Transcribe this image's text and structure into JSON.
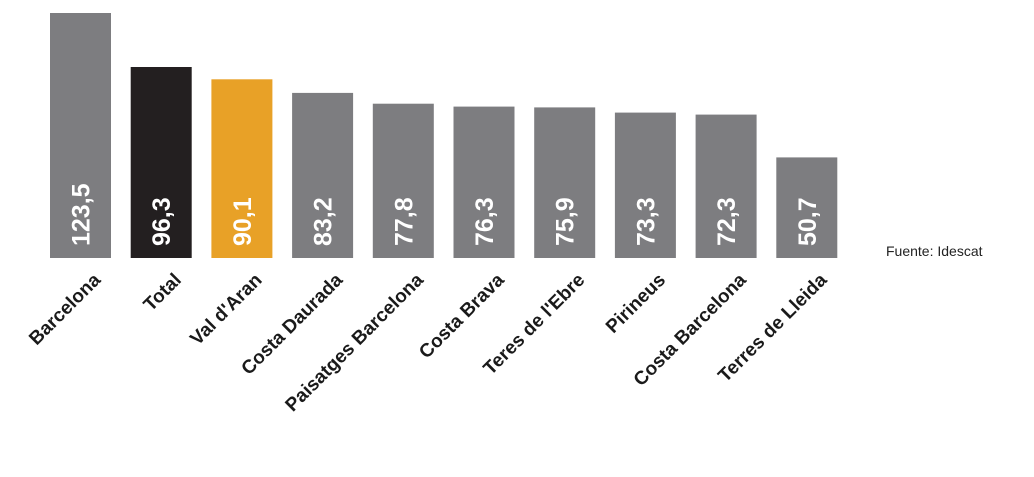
{
  "source_note": "Fuente: Idescat",
  "colors": {
    "default_bar": "#7d7d80",
    "total_bar": "#231f20",
    "highlight_bar": "#e8a127",
    "value_label": "#ffffff",
    "category_label": "#1a1a1a"
  },
  "chart_data": {
    "type": "bar",
    "title": "",
    "xlabel": "",
    "ylabel": "",
    "ylim": [
      0,
      123.5
    ],
    "grid": false,
    "categories": [
      "Barcelona",
      "Total",
      "Val d'Aran",
      "Costa Daurada",
      "Paisatges Barcelona",
      "Costa Brava",
      "Teres de l'Ebre",
      "Pirineus",
      "Costa Barcelona",
      "Terres de Lleida"
    ],
    "values": [
      123.5,
      96.3,
      90.1,
      83.2,
      77.8,
      76.3,
      75.9,
      73.3,
      72.3,
      50.7
    ],
    "value_labels": [
      "123,5",
      "96,3",
      "90,1",
      "83,2",
      "77,8",
      "76,3",
      "75,9",
      "73,3",
      "72,3",
      "50,7"
    ],
    "bar_colors": [
      "#7d7d80",
      "#231f20",
      "#e8a127",
      "#7d7d80",
      "#7d7d80",
      "#7d7d80",
      "#7d7d80",
      "#7d7d80",
      "#7d7d80",
      "#7d7d80"
    ]
  }
}
